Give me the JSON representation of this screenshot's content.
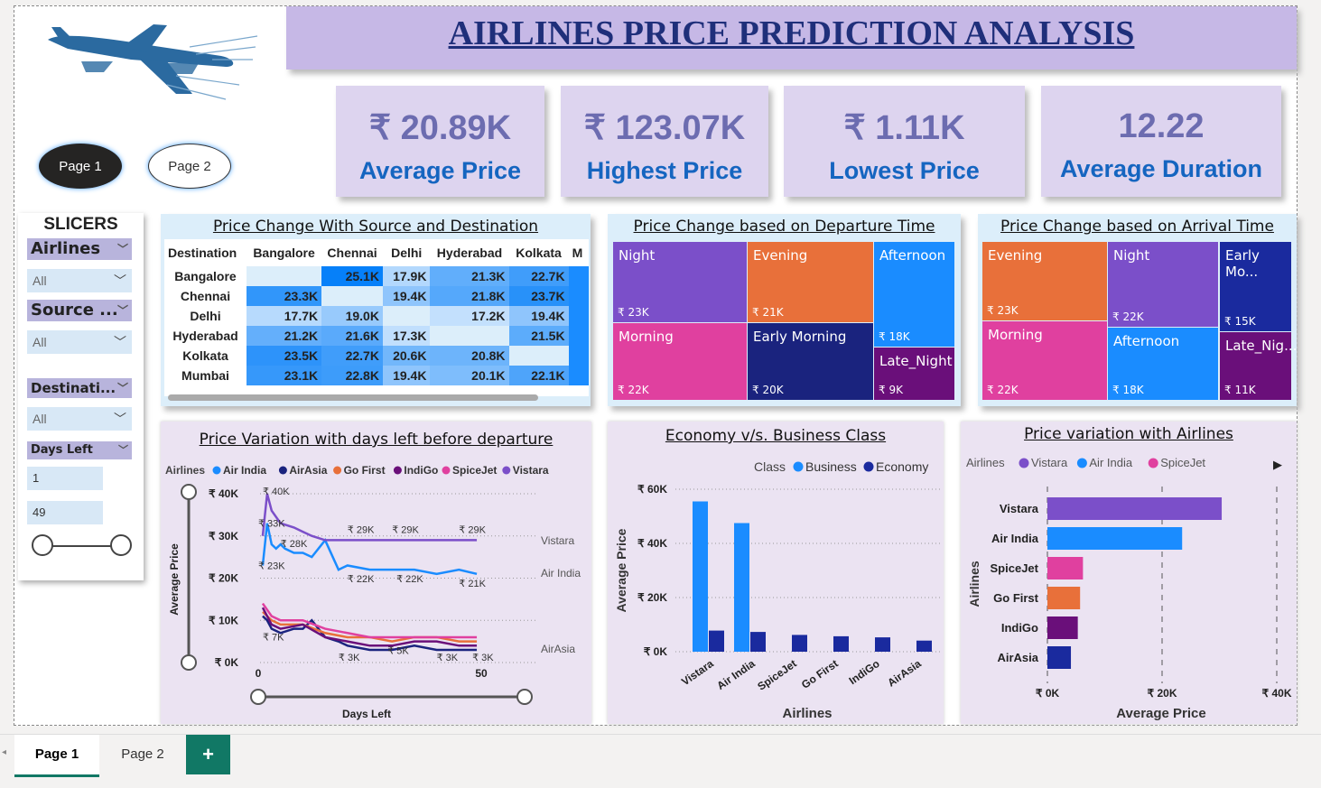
{
  "title": "AIRLINES PRICE PREDICTION ANALYSIS",
  "nav": {
    "page1": "Page 1",
    "page2": "Page 2"
  },
  "kpis": [
    {
      "value": "₹ 20.89K",
      "label": "Average Price"
    },
    {
      "value": "₹ 123.07K",
      "label": "Highest Price"
    },
    {
      "value": "₹ 1.11K",
      "label": "Lowest Price"
    },
    {
      "value": "12.22",
      "label": "Average Duration"
    }
  ],
  "slicers": {
    "title": "SLICERS",
    "airlines": {
      "label": "Airlines",
      "value": "All"
    },
    "source": {
      "label": "Source ...",
      "value": "All"
    },
    "destination": {
      "label": "Destinati...",
      "value": "All"
    },
    "days_left": {
      "label": "Days Left",
      "min": "1",
      "max": "49"
    }
  },
  "matrix": {
    "title": "Price Change With Source and Destination",
    "corner": "Destination",
    "columns": [
      "Bangalore",
      "Chennai",
      "Delhi",
      "Hyderabad",
      "Kolkata",
      "M"
    ],
    "rows": [
      {
        "label": "Bangalore",
        "cells": [
          "",
          "25.1K",
          "17.9K",
          "21.3K",
          "22.7K",
          ""
        ]
      },
      {
        "label": "Chennai",
        "cells": [
          "23.3K",
          "",
          "19.4K",
          "21.8K",
          "23.7K",
          ""
        ]
      },
      {
        "label": "Delhi",
        "cells": [
          "17.7K",
          "19.0K",
          "",
          "17.2K",
          "19.4K",
          ""
        ]
      },
      {
        "label": "Hyderabad",
        "cells": [
          "21.2K",
          "21.6K",
          "17.3K",
          "",
          "21.5K",
          ""
        ]
      },
      {
        "label": "Kolkata",
        "cells": [
          "23.5K",
          "22.7K",
          "20.6K",
          "20.8K",
          "",
          ""
        ]
      },
      {
        "label": "Mumbai",
        "cells": [
          "23.1K",
          "22.8K",
          "19.4K",
          "20.1K",
          "22.1K",
          ""
        ]
      }
    ]
  },
  "departure": {
    "title": "Price Change based on Departure Time",
    "tiles": [
      {
        "name": "Night",
        "value": "₹ 23K",
        "color": "#7b4fc9"
      },
      {
        "name": "Evening",
        "value": "₹ 21K",
        "color": "#e8703a"
      },
      {
        "name": "Afternoon",
        "value": "₹ 18K",
        "color": "#1a8cff"
      },
      {
        "name": "Morning",
        "value": "₹ 22K",
        "color": "#e0409f"
      },
      {
        "name": "Early Morning",
        "value": "₹ 20K",
        "color": "#1a237e"
      },
      {
        "name": "Late_Night",
        "value": "₹ 9K",
        "color": "#6a0f7a"
      }
    ]
  },
  "arrival": {
    "title": "Price Change based on Arrival Time",
    "tiles": [
      {
        "name": "Evening",
        "value": "₹ 23K",
        "color": "#e8703a"
      },
      {
        "name": "Night",
        "value": "₹ 22K",
        "color": "#7b4fc9"
      },
      {
        "name": "Early Mo...",
        "value": "₹ 15K",
        "color": "#1a2a9e"
      },
      {
        "name": "Morning",
        "value": "₹ 22K",
        "color": "#e0409f"
      },
      {
        "name": "Afternoon",
        "value": "₹ 18K",
        "color": "#1a8cff"
      },
      {
        "name": "Late_Nig...",
        "value": "₹ 11K",
        "color": "#6a0f7a"
      }
    ]
  },
  "chart_data": [
    {
      "type": "line",
      "title": "Price Variation with days left before departure",
      "xlabel": "Days Left",
      "ylabel": "Average Price",
      "xlim": [
        0,
        50
      ],
      "ylim": [
        0,
        40000
      ],
      "yticks": [
        "₹ 0K",
        "₹ 10K",
        "₹ 20K",
        "₹ 30K",
        "₹ 40K"
      ],
      "xticks": [
        "0",
        "50"
      ],
      "legend_title": "Airlines",
      "series": [
        {
          "name": "Air India",
          "color": "#1a8cff",
          "x": [
            1,
            2,
            3,
            4,
            5,
            6,
            8,
            10,
            12,
            15,
            18,
            20,
            25,
            30,
            35,
            40,
            45,
            49
          ],
          "values": [
            23000,
            33000,
            28000,
            27000,
            28000,
            27000,
            26000,
            26000,
            25000,
            29000,
            22000,
            23000,
            22000,
            22000,
            22000,
            21000,
            22000,
            21000
          ],
          "labels": [
            "₹ 23K",
            "₹ 33K",
            "₹ 28K",
            "₹ 29K",
            "₹ 22K",
            "₹ 29K",
            "₹ 22K",
            "₹ 29K",
            "₹ 21K"
          ]
        },
        {
          "name": "AirAsia",
          "color": "#1a237e",
          "x": [
            1,
            2,
            3,
            5,
            8,
            10,
            12,
            15,
            18,
            20,
            25,
            30,
            35,
            40,
            45,
            49
          ],
          "values": [
            11000,
            10000,
            8000,
            7000,
            8000,
            8000,
            10000,
            6000,
            5000,
            4000,
            3000,
            3000,
            4000,
            3000,
            3000,
            3000
          ],
          "labels": [
            "₹ 7K",
            "₹ 3K",
            "₹ 3K",
            "₹ 3K"
          ]
        },
        {
          "name": "Go First",
          "color": "#e8703a",
          "x": [
            1,
            3,
            5,
            10,
            15,
            20,
            25,
            30,
            35,
            40,
            45,
            49
          ],
          "values": [
            12000,
            10000,
            9000,
            9000,
            7000,
            6000,
            6000,
            5000,
            6000,
            6000,
            5000,
            5000
          ]
        },
        {
          "name": "IndiGo",
          "color": "#6a0f7a",
          "x": [
            1,
            3,
            5,
            10,
            15,
            20,
            25,
            30,
            35,
            40,
            45,
            49
          ],
          "values": [
            13000,
            9000,
            8000,
            9000,
            6000,
            5000,
            4000,
            4000,
            5000,
            5000,
            4000,
            4000
          ],
          "labels": [
            "₹ 5K"
          ]
        },
        {
          "name": "SpiceJet",
          "color": "#e0409f",
          "x": [
            1,
            3,
            5,
            10,
            15,
            20,
            25,
            30,
            35,
            40,
            45,
            49
          ],
          "values": [
            14000,
            11000,
            10000,
            10000,
            8000,
            7000,
            6000,
            6000,
            6000,
            6000,
            6000,
            6000
          ]
        },
        {
          "name": "Vistara",
          "color": "#7b4fc9",
          "x": [
            1,
            2,
            3,
            5,
            8,
            10,
            12,
            15,
            20,
            25,
            30,
            35,
            40,
            45,
            49
          ],
          "values": [
            30000,
            40000,
            36000,
            33000,
            32000,
            31000,
            30000,
            29000,
            29000,
            29000,
            29000,
            29000,
            29000,
            29000,
            29000
          ],
          "labels": [
            "₹ 40K",
            "₹ 29K",
            "₹ 29K",
            "₹ 29K"
          ]
        }
      ],
      "end_labels": [
        "Vistara",
        "Air India",
        "AirAsia"
      ]
    },
    {
      "type": "bar",
      "title": "Economy v/s. Business Class",
      "xlabel": "Airlines",
      "ylabel": "Average Price",
      "legend_title": "Class",
      "ylim": [
        0,
        60000
      ],
      "yticks": [
        "₹ 0K",
        "₹ 20K",
        "₹ 40K",
        "₹ 60K"
      ],
      "categories": [
        "Vistara",
        "Air India",
        "SpiceJet",
        "Go First",
        "IndiGo",
        "AirAsia"
      ],
      "series": [
        {
          "name": "Business",
          "color": "#1a8cff",
          "values": [
            55500,
            47500,
            0,
            0,
            0,
            0
          ]
        },
        {
          "name": "Economy",
          "color": "#1a2a9e",
          "values": [
            7800,
            7300,
            6200,
            5700,
            5300,
            4100
          ]
        }
      ]
    },
    {
      "type": "bar",
      "orientation": "horizontal",
      "title": "Price variation with Airlines",
      "xlabel": "Average Price",
      "ylabel": "Airlines",
      "legend_title": "Airlines",
      "legend": [
        "Vistara",
        "Air India",
        "SpiceJet"
      ],
      "xlim": [
        0,
        40000
      ],
      "xticks": [
        "₹ 0K",
        "₹ 20K",
        "₹ 40K"
      ],
      "categories": [
        "Vistara",
        "Air India",
        "SpiceJet",
        "Go First",
        "IndiGo",
        "AirAsia"
      ],
      "values": [
        30400,
        23500,
        6200,
        5700,
        5300,
        4100
      ],
      "colors": [
        "#7b4fc9",
        "#1a8cff",
        "#e0409f",
        "#e8703a",
        "#6a0f7a",
        "#1a2a9e"
      ]
    }
  ],
  "tabs": {
    "tab1": "Page 1",
    "tab2": "Page 2",
    "add": "+"
  }
}
